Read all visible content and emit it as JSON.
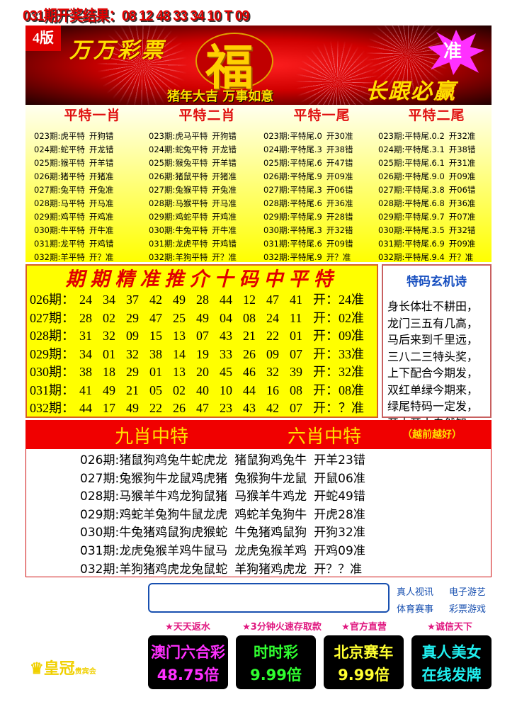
{
  "header": {
    "result_line": "031期开奖结果：08 12 48 33 34 10 T 09"
  },
  "banner": {
    "edition": "4版",
    "brand": "万万彩票",
    "fu": "福",
    "slogan": "猪年大吉  万事如意",
    "follow": "长跟必赢",
    "star": "准"
  },
  "picks": [
    {
      "title": "平特一肖",
      "rows": [
        [
          "023期:",
          "虎平特",
          "开狗错"
        ],
        [
          "024期:",
          "蛇平特",
          "开龙错"
        ],
        [
          "025期:",
          "猴平特",
          "开羊错"
        ],
        [
          "026期:",
          "猪平特",
          "开猪准"
        ],
        [
          "027期:",
          "兔平特",
          "开兔准"
        ],
        [
          "028期:",
          "马平特",
          "开马准"
        ],
        [
          "029期:",
          "鸡平特",
          "开鸡准"
        ],
        [
          "030期:",
          "牛平特",
          "开牛准"
        ],
        [
          "031期:",
          "龙平特",
          "开鸡错"
        ],
        [
          "032期:",
          "羊平特",
          "开？准"
        ]
      ]
    },
    {
      "title": "平特二肖",
      "rows": [
        [
          "023期:",
          "虎马平特",
          "开狗错"
        ],
        [
          "024期:",
          "蛇兔平特",
          "开龙错"
        ],
        [
          "025期:",
          "猴兔平特",
          "开羊错"
        ],
        [
          "026期:",
          "猪鼠平特",
          "开猪准"
        ],
        [
          "027期:",
          "兔猴平特",
          "开兔准"
        ],
        [
          "028期:",
          "马猴平特",
          "开马准"
        ],
        [
          "029期:",
          "鸡蛇平特",
          "开鸡准"
        ],
        [
          "030期:",
          "牛兔平特",
          "开牛准"
        ],
        [
          "031期:",
          "龙虎平特",
          "开鸡错"
        ],
        [
          "032期:",
          "羊狗平特",
          "开？准"
        ]
      ]
    },
    {
      "title": "平特一尾",
      "rows": [
        [
          "023期:",
          "平特尾.0",
          "开30准"
        ],
        [
          "024期:",
          "平特尾.3",
          "开38错"
        ],
        [
          "025期:",
          "平特尾.6",
          "开47错"
        ],
        [
          "026期:",
          "平特尾.9",
          "开09准"
        ],
        [
          "027期:",
          "平特尾.3",
          "开06错"
        ],
        [
          "028期:",
          "平特尾.6",
          "开36准"
        ],
        [
          "029期:",
          "平特尾.9",
          "开28错"
        ],
        [
          "030期:",
          "平特尾.3",
          "开32错"
        ],
        [
          "031期:",
          "平特尾.6",
          "开09错"
        ],
        [
          "032期:",
          "平特尾.9",
          "开？准"
        ]
      ]
    },
    {
      "title": "平特二尾",
      "rows": [
        [
          "023期:",
          "平特尾.0.2",
          "开32准"
        ],
        [
          "024期:",
          "平特尾.3.1",
          "开38错"
        ],
        [
          "025期:",
          "平特尾.6.1",
          "开31准"
        ],
        [
          "026期:",
          "平特尾.9.0",
          "开09准"
        ],
        [
          "027期:",
          "平特尾.3.8",
          "开06错"
        ],
        [
          "028期:",
          "平特尾.6.8",
          "开36准"
        ],
        [
          "029期:",
          "平特尾.9.7",
          "开07准"
        ],
        [
          "030期:",
          "平特尾.3.5",
          "开32错"
        ],
        [
          "031期:",
          "平特尾.6.9",
          "开09准"
        ],
        [
          "032期:",
          "平特尾.9.4",
          "开？准"
        ]
      ]
    }
  ],
  "ten_codes": {
    "title": "期期精准推介十码中平特",
    "rows": [
      {
        "period": "026期：",
        "nums": [
          "24",
          "34",
          "37",
          "42",
          "49",
          "28",
          "44",
          "12",
          "47",
          "41"
        ],
        "result": "开：24准"
      },
      {
        "period": "027期：",
        "nums": [
          "28",
          "02",
          "29",
          "47",
          "25",
          "49",
          "04",
          "08",
          "24",
          "11"
        ],
        "result": "开：02准"
      },
      {
        "period": "028期：",
        "nums": [
          "31",
          "32",
          "09",
          "15",
          "13",
          "07",
          "43",
          "21",
          "22",
          "01"
        ],
        "result": "开：09准"
      },
      {
        "period": "029期：",
        "nums": [
          "34",
          "01",
          "32",
          "38",
          "14",
          "19",
          "33",
          "26",
          "09",
          "07"
        ],
        "result": "开：33准"
      },
      {
        "period": "030期：",
        "nums": [
          "38",
          "18",
          "29",
          "01",
          "13",
          "20",
          "45",
          "46",
          "32",
          "39"
        ],
        "result": "开：32准"
      },
      {
        "period": "031期：",
        "nums": [
          "41",
          "49",
          "21",
          "05",
          "02",
          "40",
          "10",
          "44",
          "16",
          "08"
        ],
        "result": "开：08准"
      },
      {
        "period": "032期：",
        "nums": [
          "44",
          "17",
          "49",
          "22",
          "26",
          "47",
          "23",
          "43",
          "42",
          "07"
        ],
        "result": "开：？准"
      }
    ]
  },
  "poem": {
    "title": "特码玄机诗",
    "lines": [
      "身长体壮不耕田，",
      "龙门三五有几高，",
      "马后来到千里远，",
      "三八二三特头奖，",
      "上下配合今期发，",
      "双红单绿今期来，",
      "绿尾特码一定发，",
      "开大开小自然知。"
    ]
  },
  "nine_six": {
    "title_nine": "九肖中特",
    "title_six": "六肖中特",
    "note": "（越前越好）",
    "rows": [
      [
        "026期:",
        "猪鼠狗鸡兔牛蛇虎龙",
        "猪鼠狗鸡兔牛",
        "开羊23错"
      ],
      [
        "027期:",
        "兔猴狗牛龙鼠鸡虎猪",
        "兔猴狗牛龙鼠",
        "开鼠06准"
      ],
      [
        "028期:",
        "马猴羊牛鸡龙狗鼠猪",
        "马猴羊牛鸡龙",
        "开蛇49错"
      ],
      [
        "029期:",
        "鸡蛇羊兔狗牛鼠龙虎",
        "鸡蛇羊兔狗牛",
        "开虎28准"
      ],
      [
        "030期:",
        "牛兔猪鸡鼠狗虎猴蛇",
        "牛兔猪鸡鼠狗",
        "开狗32准"
      ],
      [
        "031期:",
        "龙虎兔猴羊鸡牛鼠马",
        "龙虎兔猴羊鸡",
        "开鸡09准"
      ],
      [
        "032期:",
        "羊狗猪鸡虎龙兔鼠蛇",
        "羊狗猪鸡虎龙",
        "开？？准"
      ]
    ]
  },
  "ads": {
    "links": [
      "真人视讯",
      "电子游艺",
      "体育赛事",
      "彩票游戏"
    ],
    "tags": [
      "★天天返水",
      "★3分钟火速存取款",
      "★官方直营",
      "★诚信天下"
    ],
    "tiles": [
      {
        "line1": "澳门六合彩",
        "line2": "48.75倍",
        "color": "#ff30ff"
      },
      {
        "line1": "时时彩",
        "line2": "9.99倍",
        "color": "#30ff30"
      },
      {
        "line1": "北京赛车",
        "line2": "9.99倍",
        "color": "#ffff30"
      },
      {
        "line1": "真人美女",
        "line2": "在线发牌",
        "color": "#20f0f0"
      }
    ],
    "logo": "皇冠",
    "logo_sub": "贵宾会"
  }
}
